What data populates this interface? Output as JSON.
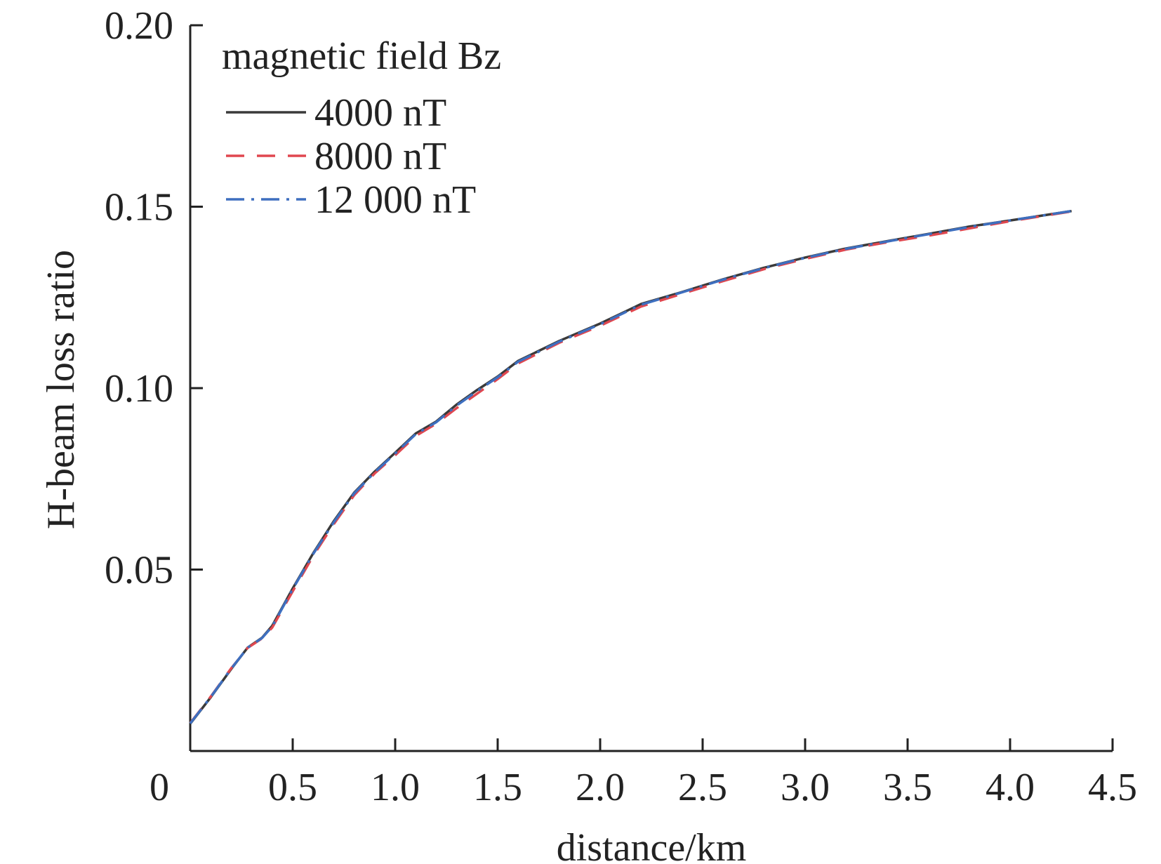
{
  "chart_data": {
    "type": "line",
    "title": "",
    "xlabel": "distance/km",
    "ylabel": "H-beam loss ratio",
    "xlim": [
      0,
      4.5
    ],
    "ylim": [
      0,
      0.2
    ],
    "x_ticks": [
      {
        "value": 0,
        "label": "0"
      },
      {
        "value": 0.5,
        "label": "0.5"
      },
      {
        "value": 1.0,
        "label": "1.0"
      },
      {
        "value": 1.5,
        "label": "1.5"
      },
      {
        "value": 2.0,
        "label": "2.0"
      },
      {
        "value": 2.5,
        "label": "2.5"
      },
      {
        "value": 3.0,
        "label": "3.0"
      },
      {
        "value": 3.5,
        "label": "3.5"
      },
      {
        "value": 4.0,
        "label": "4.0"
      },
      {
        "value": 4.5,
        "label": "4.5"
      }
    ],
    "y_ticks": [
      {
        "value": 0.05,
        "label": "0.05"
      },
      {
        "value": 0.1,
        "label": "0.10"
      },
      {
        "value": 0.15,
        "label": "0.15"
      },
      {
        "value": 0.2,
        "label": "0.20"
      }
    ],
    "grid": false,
    "legend": {
      "title": "magnetic field Bz",
      "position": "top-left"
    },
    "x": [
      0,
      0.1,
      0.2,
      0.28,
      0.35,
      0.4,
      0.5,
      0.6,
      0.7,
      0.8,
      0.9,
      1.0,
      1.1,
      1.2,
      1.3,
      1.4,
      1.5,
      1.6,
      1.8,
      2.0,
      2.2,
      2.4,
      2.6,
      2.8,
      3.0,
      3.2,
      3.4,
      3.6,
      3.8,
      4.0,
      4.3
    ],
    "series": [
      {
        "name": "4000 nT",
        "color": "#3a3a3a",
        "dash": "solid",
        "values": [
          0.0075,
          0.0148,
          0.0226,
          0.0285,
          0.0312,
          0.0345,
          0.0448,
          0.0545,
          0.0633,
          0.0712,
          0.077,
          0.0822,
          0.0875,
          0.0908,
          0.0955,
          0.0995,
          0.1032,
          0.1075,
          0.113,
          0.1178,
          0.1232,
          0.1265,
          0.13,
          0.1332,
          0.136,
          0.1385,
          0.1405,
          0.1425,
          0.1445,
          0.1462,
          0.1488
        ]
      },
      {
        "name": "8000 nT",
        "color": "#e0474f",
        "dash": "dashed",
        "values": [
          0.0077,
          0.015,
          0.0228,
          0.0284,
          0.031,
          0.034,
          0.044,
          0.0538,
          0.0625,
          0.0705,
          0.0765,
          0.0815,
          0.0868,
          0.0902,
          0.0945,
          0.0985,
          0.1025,
          0.1068,
          0.1125,
          0.1172,
          0.1225,
          0.126,
          0.1295,
          0.1328,
          0.1356,
          0.1382,
          0.1402,
          0.142,
          0.144,
          0.146,
          0.1487
        ]
      },
      {
        "name": "12 000 nT",
        "color": "#3e6fbf",
        "dash": "dashdot",
        "values": [
          0.0076,
          0.0149,
          0.0227,
          0.0285,
          0.0311,
          0.0343,
          0.0446,
          0.0543,
          0.063,
          0.071,
          0.0768,
          0.082,
          0.0873,
          0.0906,
          0.0952,
          0.0992,
          0.103,
          0.1073,
          0.1128,
          0.1176,
          0.123,
          0.1264,
          0.1299,
          0.1331,
          0.1359,
          0.1384,
          0.1404,
          0.1424,
          0.1444,
          0.1462,
          0.1488
        ]
      }
    ]
  }
}
